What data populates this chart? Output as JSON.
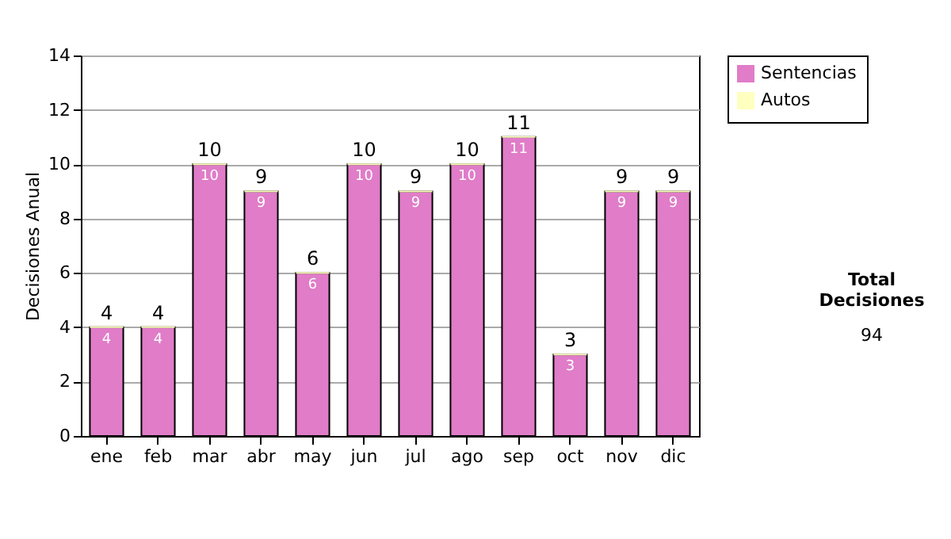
{
  "chart_data": {
    "type": "bar",
    "ylabel": "Decisiones Anual",
    "categories": [
      "ene",
      "feb",
      "mar",
      "abr",
      "may",
      "jun",
      "jul",
      "ago",
      "sep",
      "oct",
      "nov",
      "dic"
    ],
    "series": [
      {
        "name": "Sentencias",
        "color": "#e07cc8",
        "values": [
          4,
          4,
          10,
          9,
          6,
          10,
          9,
          10,
          11,
          3,
          9,
          9
        ],
        "value_labels": [
          "4",
          "4",
          "10",
          "9",
          "6",
          "10",
          "9",
          "10",
          "11",
          "3",
          "9",
          "9"
        ]
      },
      {
        "name": "Autos",
        "color": "#ffffc0",
        "values": [
          0,
          0,
          0,
          0,
          0,
          0,
          0,
          0,
          0,
          0,
          0,
          0
        ]
      }
    ],
    "stacked": true,
    "totals": [
      "4",
      "4",
      "10",
      "9",
      "6",
      "10",
      "9",
      "10",
      "11",
      "3",
      "9",
      "9"
    ],
    "ylim": [
      0,
      14
    ],
    "yticks": [
      0,
      2,
      4,
      6,
      8,
      10,
      12,
      14
    ],
    "grid": "y",
    "legend": "right",
    "annotations": [
      "Total Decisiones",
      "94"
    ]
  }
}
